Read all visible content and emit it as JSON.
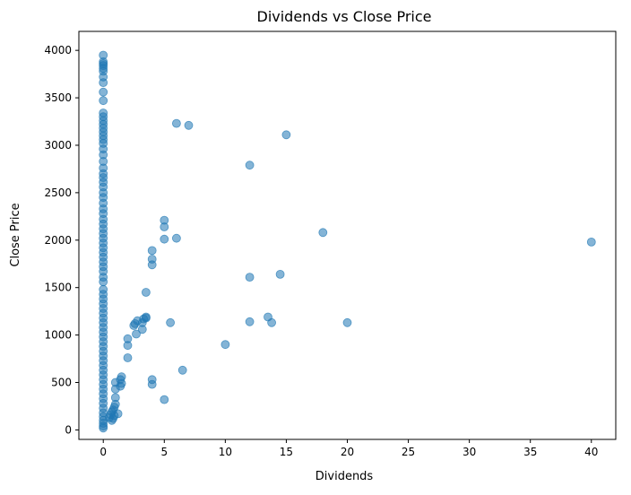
{
  "chart_data": {
    "type": "scatter",
    "title": "Dividends vs Close Price",
    "xlabel": "Dividends",
    "ylabel": "Close Price",
    "xlim": [
      -2,
      42
    ],
    "ylim": [
      -100,
      4200
    ],
    "xticks": [
      0,
      5,
      10,
      15,
      20,
      25,
      30,
      35,
      40
    ],
    "yticks": [
      0,
      500,
      1000,
      1500,
      2000,
      2500,
      3000,
      3500,
      4000
    ],
    "grid": false,
    "marker_color": "#1f77b4",
    "marker_alpha": 0.55,
    "series": [
      {
        "x_constant_zero_column": 0,
        "points": [
          [
            0,
            3950
          ],
          [
            0,
            3880
          ],
          [
            0,
            3860
          ],
          [
            0,
            3840
          ],
          [
            0,
            3810
          ],
          [
            0,
            3780
          ],
          [
            0,
            3720
          ],
          [
            0,
            3660
          ],
          [
            0,
            3560
          ],
          [
            0,
            3470
          ],
          [
            0,
            3340
          ],
          [
            0,
            3300
          ],
          [
            0,
            3260
          ],
          [
            0,
            3220
          ],
          [
            0,
            3180
          ],
          [
            0,
            3140
          ],
          [
            0,
            3100
          ],
          [
            0,
            3060
          ],
          [
            0,
            3020
          ],
          [
            0,
            2960
          ],
          [
            0,
            2900
          ],
          [
            0,
            2830
          ],
          [
            0,
            2760
          ],
          [
            0,
            2700
          ],
          [
            0,
            2660
          ],
          [
            0,
            2610
          ],
          [
            0,
            2560
          ],
          [
            0,
            2500
          ],
          [
            0,
            2450
          ],
          [
            0,
            2390
          ],
          [
            0,
            2330
          ],
          [
            0,
            2280
          ],
          [
            0,
            2220
          ],
          [
            0,
            2170
          ],
          [
            0,
            2120
          ],
          [
            0,
            2070
          ],
          [
            0,
            2020
          ],
          [
            0,
            1970
          ],
          [
            0,
            1920
          ],
          [
            0,
            1870
          ],
          [
            0,
            1820
          ],
          [
            0,
            1770
          ],
          [
            0,
            1720
          ],
          [
            0,
            1670
          ],
          [
            0,
            1610
          ],
          [
            0,
            1560
          ],
          [
            0,
            1480
          ],
          [
            0,
            1430
          ],
          [
            0,
            1380
          ],
          [
            0,
            1330
          ],
          [
            0,
            1280
          ],
          [
            0,
            1230
          ],
          [
            0,
            1180
          ],
          [
            0,
            1130
          ],
          [
            0,
            1080
          ],
          [
            0,
            1030
          ],
          [
            0,
            980
          ],
          [
            0,
            930
          ],
          [
            0,
            880
          ],
          [
            0,
            830
          ],
          [
            0,
            780
          ],
          [
            0,
            730
          ],
          [
            0,
            680
          ],
          [
            0,
            630
          ],
          [
            0,
            580
          ],
          [
            0,
            530
          ],
          [
            0,
            480
          ],
          [
            0,
            430
          ],
          [
            0,
            380
          ],
          [
            0,
            330
          ],
          [
            0,
            280
          ],
          [
            0,
            230
          ],
          [
            0,
            180
          ],
          [
            0,
            140
          ],
          [
            0,
            100
          ],
          [
            0,
            70
          ],
          [
            0,
            40
          ],
          [
            0,
            20
          ],
          [
            0.5,
            130
          ],
          [
            0.6,
            160
          ],
          [
            0.7,
            190
          ],
          [
            0.7,
            100
          ],
          [
            0.8,
            210
          ],
          [
            0.8,
            120
          ],
          [
            0.9,
            240
          ],
          [
            0.9,
            150
          ],
          [
            1.0,
            270
          ],
          [
            1.0,
            340
          ],
          [
            1.0,
            430
          ],
          [
            1.0,
            500
          ],
          [
            1.2,
            170
          ],
          [
            1.4,
            460
          ],
          [
            1.5,
            490
          ],
          [
            1.5,
            560
          ],
          [
            1.4,
            530
          ],
          [
            2.0,
            760
          ],
          [
            2.0,
            890
          ],
          [
            2.0,
            960
          ],
          [
            2.5,
            1100
          ],
          [
            2.6,
            1120
          ],
          [
            2.8,
            1150
          ],
          [
            2.7,
            1010
          ],
          [
            3.2,
            1060
          ],
          [
            3.2,
            1130
          ],
          [
            3.3,
            1170
          ],
          [
            3.5,
            1190
          ],
          [
            3.5,
            1180
          ],
          [
            3.5,
            1450
          ],
          [
            4.0,
            480
          ],
          [
            4.0,
            530
          ],
          [
            4.0,
            1740
          ],
          [
            4.0,
            1800
          ],
          [
            4.0,
            1890
          ],
          [
            5.0,
            320
          ],
          [
            5.0,
            2010
          ],
          [
            5.0,
            2140
          ],
          [
            5.0,
            2210
          ],
          [
            5.5,
            1130
          ],
          [
            6.0,
            2020
          ],
          [
            6.0,
            3230
          ],
          [
            6.5,
            630
          ],
          [
            7.0,
            3210
          ],
          [
            10.0,
            900
          ],
          [
            12.0,
            1140
          ],
          [
            12.0,
            1610
          ],
          [
            12.0,
            2790
          ],
          [
            13.5,
            1190
          ],
          [
            13.8,
            1130
          ],
          [
            14.5,
            1640
          ],
          [
            15.0,
            3110
          ],
          [
            18.0,
            2080
          ],
          [
            20.0,
            1130
          ],
          [
            40.0,
            1980
          ]
        ]
      }
    ]
  }
}
